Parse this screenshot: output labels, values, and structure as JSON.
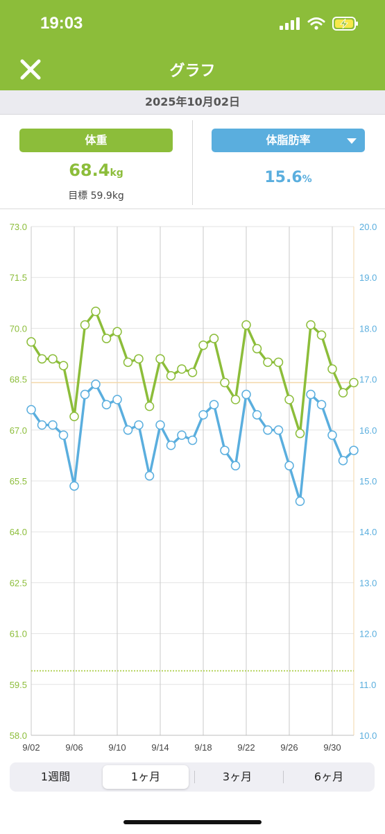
{
  "status": {
    "time": "19:03"
  },
  "nav": {
    "title": "グラフ"
  },
  "date": "2025年10月02日",
  "weight": {
    "label": "体重",
    "value": "68.4",
    "unit": "kg",
    "goal_label": "目標",
    "goal_value": "59.9kg"
  },
  "body_fat": {
    "label": "体脂肪率",
    "value": "15.6",
    "unit": "%"
  },
  "segments": [
    {
      "label": "1週間",
      "active": false
    },
    {
      "label": "1ヶ月",
      "active": true
    },
    {
      "label": "3ヶ月",
      "active": false
    },
    {
      "label": "6ヶ月",
      "active": false
    }
  ],
  "colors": {
    "green": "#8cbd3a",
    "blue": "#5aaede",
    "goal_line": "#c9de8a",
    "current_line": "#f3d7a8"
  },
  "chart_data": {
    "type": "line",
    "x": [
      "9/02",
      "9/03",
      "9/04",
      "9/05",
      "9/06",
      "9/07",
      "9/08",
      "9/09",
      "9/10",
      "9/11",
      "9/12",
      "9/13",
      "9/14",
      "9/15",
      "9/16",
      "9/17",
      "9/18",
      "9/19",
      "9/20",
      "9/21",
      "9/22",
      "9/23",
      "9/24",
      "9/25",
      "9/26",
      "9/27",
      "9/28",
      "9/29",
      "9/30",
      "10/01",
      "10/02"
    ],
    "x_tick_labels": [
      "9/02",
      "9/06",
      "9/10",
      "9/14",
      "9/18",
      "9/22",
      "9/26",
      "9/30"
    ],
    "series": [
      {
        "axis": "left",
        "color": "#8cbd3a",
        "values": [
          69.6,
          69.1,
          69.1,
          68.9,
          67.4,
          70.1,
          70.5,
          69.7,
          69.9,
          69.0,
          69.1,
          67.7,
          69.1,
          68.6,
          68.8,
          68.7,
          69.5,
          69.7,
          68.4,
          67.9,
          70.1,
          69.4,
          69.0,
          69.0,
          67.9,
          66.9,
          70.1,
          69.8,
          68.8,
          68.1,
          68.4
        ]
      },
      {
        "axis": "right",
        "color": "#5aaede",
        "values": [
          16.4,
          16.1,
          16.1,
          15.9,
          14.9,
          16.7,
          16.9,
          16.5,
          16.6,
          16.0,
          16.1,
          15.1,
          16.1,
          15.7,
          15.9,
          15.8,
          16.3,
          16.5,
          15.6,
          15.3,
          16.7,
          16.3,
          16.0,
          16.0,
          15.3,
          14.6,
          16.7,
          16.5,
          15.9,
          15.4,
          15.6
        ]
      }
    ],
    "y_left": {
      "min": 58.0,
      "max": 73.0,
      "ticks": [
        "73.0",
        "71.5",
        "70.0",
        "68.5",
        "67.0",
        "65.5",
        "64.0",
        "62.5",
        "61.0",
        "59.5",
        "58.0"
      ]
    },
    "y_right": {
      "min": 10.0,
      "max": 20.0,
      "ticks": [
        "20.0",
        "19.0",
        "18.0",
        "17.0",
        "16.0",
        "15.0",
        "14.0",
        "13.0",
        "12.0",
        "11.0",
        "10.0"
      ]
    },
    "goal_line_value": 59.9,
    "current_line_value": 68.4,
    "grid": true
  }
}
